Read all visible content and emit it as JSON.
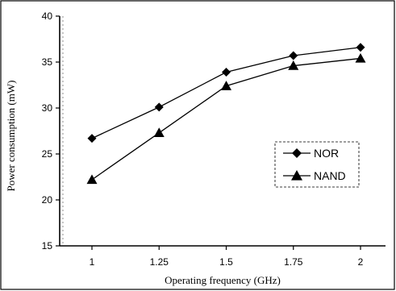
{
  "chart_data": {
    "type": "line",
    "x": [
      "1",
      "1.25",
      "1.5",
      "1.75",
      "2"
    ],
    "series": [
      {
        "name": "NOR",
        "marker": "diamond",
        "values": [
          26.7,
          30.1,
          33.9,
          35.7,
          36.6
        ]
      },
      {
        "name": "NAND",
        "marker": "triangle",
        "values": [
          22.2,
          27.3,
          32.4,
          34.6,
          35.4
        ]
      }
    ],
    "title": "",
    "xlabel": "Operating frequency (GHz)",
    "ylabel": "Power consumption (mW)",
    "ylim": [
      15,
      40
    ],
    "yticks": [
      15,
      20,
      25,
      30,
      35,
      40
    ],
    "grid": "dotted vertical at left axis",
    "legend_position": "right-middle",
    "colors": {
      "line": "#000000",
      "background": "#ffffff"
    }
  }
}
